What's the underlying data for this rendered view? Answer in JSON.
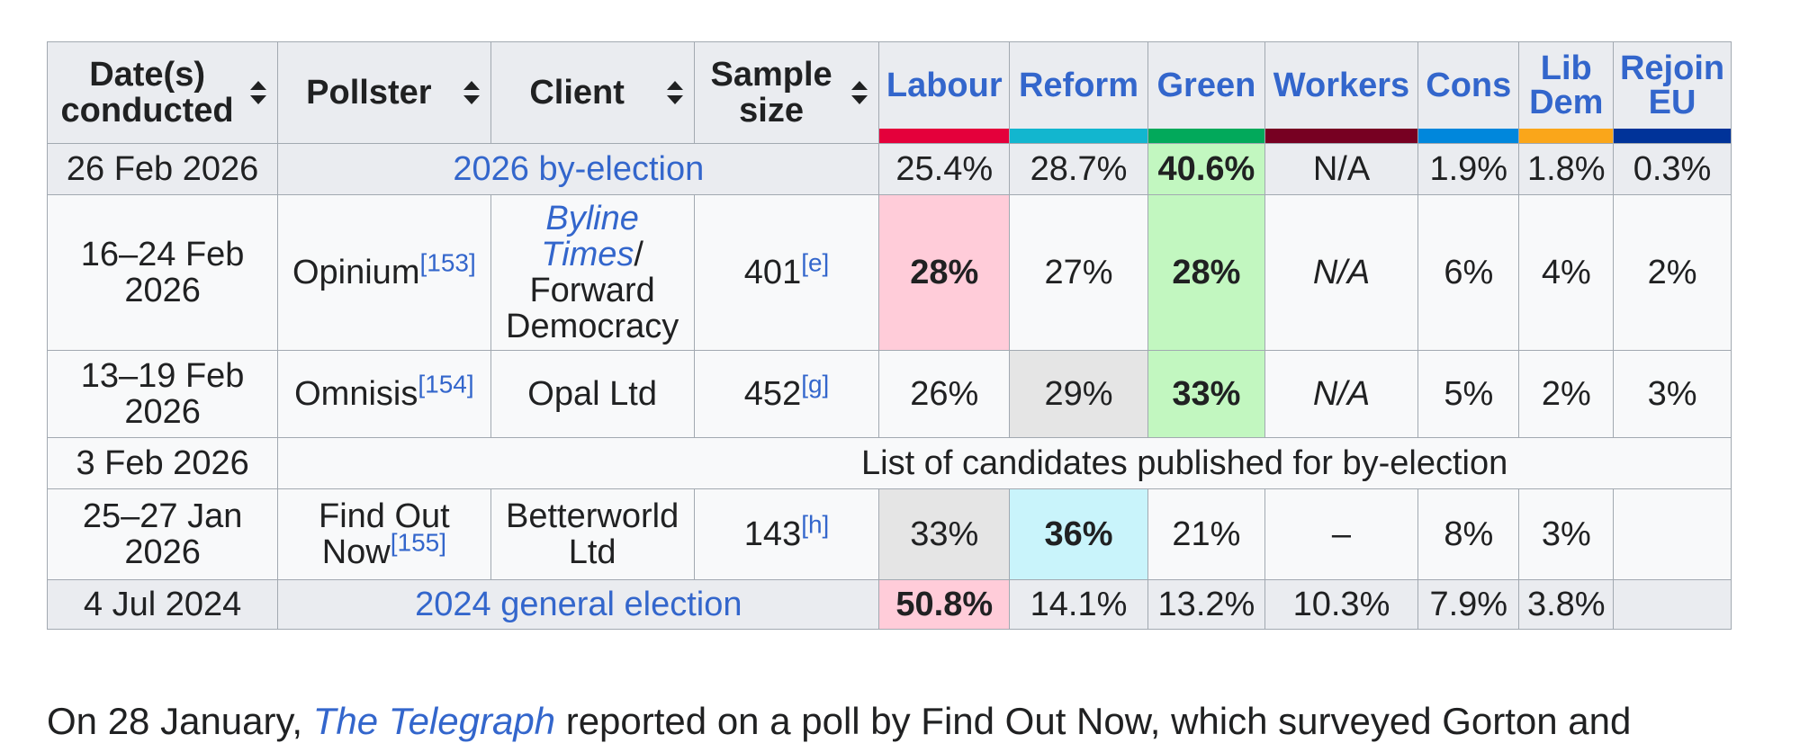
{
  "headers": {
    "date": "Date(s) conducted",
    "date_l1": "Date(s)",
    "date_l2": "conducted",
    "pollster": "Pollster",
    "client": "Client",
    "sample_l1": "Sample",
    "sample_l2": "size",
    "parties": [
      {
        "l1": "Labour",
        "l2": "",
        "color": "#e4003b"
      },
      {
        "l1": "Reform",
        "l2": "",
        "color": "#12b6cf"
      },
      {
        "l1": "Green",
        "l2": "",
        "color": "#02a95b"
      },
      {
        "l1": "Workers",
        "l2": "",
        "color": "#770022"
      },
      {
        "l1": "Cons",
        "l2": "",
        "color": "#0087dc"
      },
      {
        "l1": "Lib",
        "l2": "Dem",
        "color": "#faa61a"
      },
      {
        "l1": "Rejoin",
        "l2": "EU",
        "color": "#003399"
      }
    ]
  },
  "highlight_colors": {
    "labour": "#ffccd9",
    "green": "#c2f7c0",
    "reform": "#c9f4fb",
    "grey": "#e5e5e5"
  },
  "rows": {
    "byelection": {
      "date": "26 Feb 2026",
      "label": "2026 by-election",
      "values": [
        "25.4%",
        "28.7%",
        "40.6%",
        "N/A",
        "1.9%",
        "1.8%",
        "0.3%"
      ]
    },
    "opinium": {
      "date_l1": "16–24 Feb",
      "date_l2": "2026",
      "pollster": "Opinium",
      "pollster_ref": "[153]",
      "client_l1": "Byline",
      "client_l2": "Times",
      "client_sep": "/",
      "client_l3": "Forward",
      "client_l4": "Democracy",
      "sample": "401",
      "sample_ref": "[e]",
      "values": [
        "28%",
        "27%",
        "28%",
        "N/A",
        "6%",
        "4%",
        "2%"
      ]
    },
    "omnisis": {
      "date_l1": "13–19 Feb",
      "date_l2": "2026",
      "pollster": "Omnisis",
      "pollster_ref": "[154]",
      "client": "Opal Ltd",
      "sample": "452",
      "sample_ref": "[g]",
      "values": [
        "26%",
        "29%",
        "33%",
        "N/A",
        "5%",
        "2%",
        "3%"
      ]
    },
    "candidates": {
      "date": "3 Feb 2026",
      "text": "List of candidates published for by-election"
    },
    "findoutnow": {
      "date_l1": "25–27 Jan",
      "date_l2": "2026",
      "pollster_l1": "Find Out",
      "pollster_l2": "Now",
      "pollster_ref": "[155]",
      "client_l1": "Betterworld",
      "client_l2": "Ltd",
      "sample": "143",
      "sample_ref": "[h]",
      "values": [
        "33%",
        "36%",
        "21%",
        "–",
        "8%",
        "3%",
        ""
      ]
    },
    "general": {
      "date": "4 Jul 2024",
      "label": "2024 general election",
      "values": [
        "50.8%",
        "14.1%",
        "13.2%",
        "10.3%",
        "7.9%",
        "3.8%",
        ""
      ]
    }
  },
  "paragraph": {
    "prefix": "On 28 January, ",
    "link": "The Telegraph",
    "suffix": " reported on a poll by Find Out Now, which surveyed Gorton and"
  }
}
